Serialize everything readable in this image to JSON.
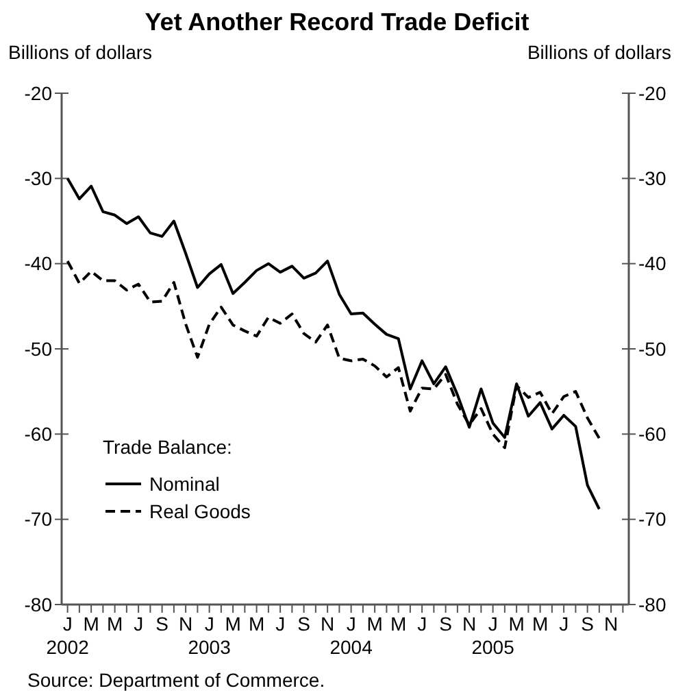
{
  "chart_data": {
    "type": "line",
    "title": "Yet Another Record Trade Deficit",
    "ylabel": "Billions of dollars",
    "y2label": "Billions of dollars",
    "categories": [
      "J\n2002",
      null,
      "M",
      null,
      "M",
      null,
      "J",
      null,
      "S",
      null,
      "N",
      null,
      "J\n2003",
      null,
      "M",
      null,
      "M",
      null,
      "J",
      null,
      "S",
      null,
      "N",
      null,
      "J\n2004",
      null,
      "M",
      null,
      "M",
      null,
      "J",
      null,
      "S",
      null,
      "N",
      null,
      "J\n2005",
      null,
      "M",
      null,
      "M",
      null,
      "J",
      null,
      "S",
      null,
      "N",
      null
    ],
    "series": [
      {
        "name": "Nominal",
        "color": "#000000",
        "line_style": "solid",
        "values": [
          -30.0,
          -32.4,
          -30.9,
          -33.9,
          -34.3,
          -35.3,
          -34.5,
          -36.4,
          -36.8,
          -35.0,
          -38.8,
          -42.8,
          -41.2,
          -40.1,
          -43.5,
          -42.2,
          -40.8,
          -40.0,
          -41.0,
          -40.3,
          -41.7,
          -41.1,
          -39.7,
          -43.6,
          -45.9,
          -45.8,
          -47.1,
          -48.3,
          -48.8,
          -54.7,
          -51.4,
          -54.1,
          -52.1,
          -55.4,
          -59.2,
          -54.7,
          -58.7,
          -60.4,
          -54.1,
          -57.9,
          -56.3,
          -59.4,
          -57.8,
          -59.1,
          -66.0,
          -68.8,
          null,
          null
        ]
      },
      {
        "name": "Real Goods",
        "color": "#000000",
        "line_style": "dashed",
        "values": [
          -39.7,
          -42.3,
          -40.9,
          -42.0,
          -42.0,
          -43.1,
          -42.4,
          -44.5,
          -44.4,
          -42.2,
          -47.1,
          -51.0,
          -47.1,
          -45.1,
          -47.2,
          -47.9,
          -48.5,
          -46.3,
          -47.0,
          -45.9,
          -48.2,
          -49.2,
          -47.2,
          -51.1,
          -51.4,
          -51.2,
          -52.0,
          -53.3,
          -52.2,
          -57.3,
          -54.6,
          -54.7,
          -53.0,
          -56.5,
          -58.9,
          -57.0,
          -60.0,
          -61.6,
          -54.3,
          -55.7,
          -55.1,
          -57.6,
          -55.6,
          -55.0,
          -58.1,
          -60.5,
          null,
          null
        ]
      }
    ],
    "ylim": [
      -80,
      -20
    ],
    "yticks": [
      -80,
      -70,
      -60,
      -50,
      -40,
      -30,
      -20
    ],
    "y2lim": [
      -80,
      -20
    ],
    "y2ticks": [
      -80,
      -70,
      -60,
      -50,
      -40,
      -30,
      -20
    ],
    "legend": "bottom left",
    "legend_title": "Trade Balance:",
    "grid": false,
    "annotations": [
      "Source: Department of Commerce."
    ]
  }
}
